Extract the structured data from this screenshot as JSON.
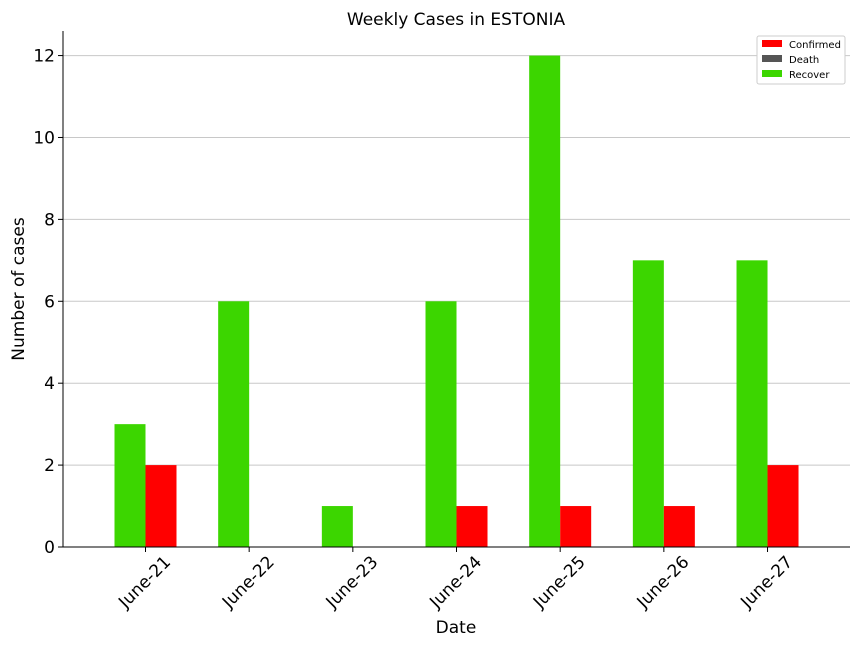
{
  "chart_data": {
    "type": "bar",
    "title": "Weekly Cases in ESTONIA",
    "xlabel": "Date",
    "ylabel": "Number of cases",
    "categories": [
      "June-21",
      "June-22",
      "June-23",
      "June-24",
      "June-25",
      "June-26",
      "June-27"
    ],
    "ylim": [
      0,
      12.6
    ],
    "yticks": [
      0,
      2,
      4,
      6,
      8,
      10,
      12
    ],
    "grid": "horizontal",
    "legend_position": "top-right",
    "series": [
      {
        "name": "Confirmed",
        "color": "#ff0000",
        "values": [
          2,
          0,
          0,
          1,
          1,
          1,
          2
        ]
      },
      {
        "name": "Death",
        "color": "#555555",
        "values": [
          0,
          0,
          0,
          0,
          0,
          0,
          0
        ]
      },
      {
        "name": "Recover",
        "color": "#3cd600",
        "values": [
          3,
          6,
          1,
          6,
          12,
          7,
          7
        ]
      }
    ]
  }
}
